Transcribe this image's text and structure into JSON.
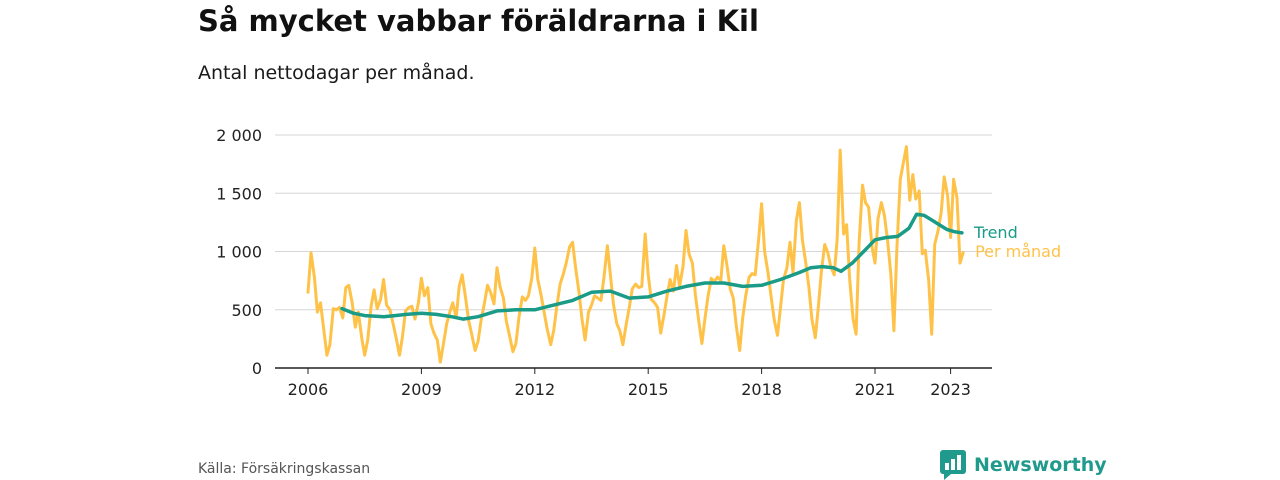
{
  "title": "Så mycket vabbar föräldrarna i Kil",
  "subtitle": "Antal nettodagar per månad.",
  "source": "Källa: Försäkringskassan",
  "brand": "Newsworthy",
  "colors": {
    "trend": "#1a9b88",
    "per_month": "#ffc249",
    "grid": "#d6d6d6",
    "axis": "#222222",
    "brand": "#1f9a8c"
  },
  "chart_data": {
    "type": "line",
    "x_ticks": [
      "2006",
      "2009",
      "2012",
      "2015",
      "2018",
      "2021",
      "2023"
    ],
    "y_ticks": [
      "0",
      "500",
      "1 000",
      "1 500",
      "2 000"
    ],
    "ylim": [
      0,
      2000
    ],
    "xlim": [
      2006,
      2024.2
    ],
    "grid": true,
    "legend": "right-end-labels",
    "series": [
      {
        "name": "Per månad",
        "color_key": "per_month",
        "points": [
          [
            2006.0,
            650
          ],
          [
            2006.08,
            990
          ],
          [
            2006.17,
            780
          ],
          [
            2006.25,
            480
          ],
          [
            2006.33,
            560
          ],
          [
            2006.42,
            320
          ],
          [
            2006.5,
            110
          ],
          [
            2006.58,
            200
          ],
          [
            2006.67,
            510
          ],
          [
            2006.75,
            500
          ],
          [
            2006.83,
            520
          ],
          [
            2006.92,
            430
          ],
          [
            2007.0,
            690
          ],
          [
            2007.08,
            710
          ],
          [
            2007.17,
            560
          ],
          [
            2007.25,
            350
          ],
          [
            2007.33,
            480
          ],
          [
            2007.42,
            260
          ],
          [
            2007.5,
            110
          ],
          [
            2007.58,
            240
          ],
          [
            2007.67,
            530
          ],
          [
            2007.75,
            670
          ],
          [
            2007.83,
            510
          ],
          [
            2007.92,
            590
          ],
          [
            2008.0,
            760
          ],
          [
            2008.08,
            540
          ],
          [
            2008.17,
            500
          ],
          [
            2008.25,
            380
          ],
          [
            2008.33,
            260
          ],
          [
            2008.42,
            110
          ],
          [
            2008.5,
            270
          ],
          [
            2008.58,
            490
          ],
          [
            2008.67,
            520
          ],
          [
            2008.75,
            530
          ],
          [
            2008.83,
            420
          ],
          [
            2008.92,
            560
          ],
          [
            2009.0,
            770
          ],
          [
            2009.08,
            620
          ],
          [
            2009.17,
            690
          ],
          [
            2009.25,
            380
          ],
          [
            2009.33,
            300
          ],
          [
            2009.42,
            240
          ],
          [
            2009.5,
            50
          ],
          [
            2009.58,
            200
          ],
          [
            2009.67,
            380
          ],
          [
            2009.75,
            480
          ],
          [
            2009.83,
            560
          ],
          [
            2009.92,
            430
          ],
          [
            2010.0,
            700
          ],
          [
            2010.08,
            800
          ],
          [
            2010.17,
            600
          ],
          [
            2010.25,
            410
          ],
          [
            2010.33,
            290
          ],
          [
            2010.42,
            150
          ],
          [
            2010.5,
            230
          ],
          [
            2010.58,
            410
          ],
          [
            2010.67,
            560
          ],
          [
            2010.75,
            710
          ],
          [
            2010.83,
            650
          ],
          [
            2010.92,
            550
          ],
          [
            2011.0,
            860
          ],
          [
            2011.08,
            700
          ],
          [
            2011.17,
            600
          ],
          [
            2011.25,
            400
          ],
          [
            2011.33,
            280
          ],
          [
            2011.42,
            140
          ],
          [
            2011.5,
            210
          ],
          [
            2011.58,
            430
          ],
          [
            2011.67,
            610
          ],
          [
            2011.75,
            580
          ],
          [
            2011.83,
            620
          ],
          [
            2011.92,
            770
          ],
          [
            2012.0,
            1030
          ],
          [
            2012.08,
            760
          ],
          [
            2012.17,
            620
          ],
          [
            2012.25,
            470
          ],
          [
            2012.33,
            330
          ],
          [
            2012.42,
            200
          ],
          [
            2012.5,
            320
          ],
          [
            2012.58,
            520
          ],
          [
            2012.67,
            720
          ],
          [
            2012.75,
            800
          ],
          [
            2012.83,
            900
          ],
          [
            2012.92,
            1040
          ],
          [
            2013.0,
            1080
          ],
          [
            2013.08,
            860
          ],
          [
            2013.17,
            650
          ],
          [
            2013.25,
            420
          ],
          [
            2013.33,
            240
          ],
          [
            2013.42,
            480
          ],
          [
            2013.5,
            540
          ],
          [
            2013.58,
            620
          ],
          [
            2013.67,
            600
          ],
          [
            2013.75,
            580
          ],
          [
            2013.83,
            780
          ],
          [
            2013.92,
            1050
          ],
          [
            2014.0,
            800
          ],
          [
            2014.08,
            550
          ],
          [
            2014.17,
            380
          ],
          [
            2014.25,
            320
          ],
          [
            2014.33,
            200
          ],
          [
            2014.42,
            380
          ],
          [
            2014.5,
            520
          ],
          [
            2014.58,
            680
          ],
          [
            2014.67,
            720
          ],
          [
            2014.75,
            690
          ],
          [
            2014.83,
            700
          ],
          [
            2014.92,
            1150
          ],
          [
            2015.0,
            800
          ],
          [
            2015.08,
            590
          ],
          [
            2015.17,
            560
          ],
          [
            2015.25,
            520
          ],
          [
            2015.33,
            300
          ],
          [
            2015.42,
            460
          ],
          [
            2015.5,
            620
          ],
          [
            2015.58,
            760
          ],
          [
            2015.67,
            660
          ],
          [
            2015.75,
            880
          ],
          [
            2015.83,
            700
          ],
          [
            2015.92,
            870
          ],
          [
            2016.0,
            1180
          ],
          [
            2016.08,
            980
          ],
          [
            2016.17,
            900
          ],
          [
            2016.25,
            620
          ],
          [
            2016.33,
            420
          ],
          [
            2016.42,
            210
          ],
          [
            2016.5,
            420
          ],
          [
            2016.58,
            610
          ],
          [
            2016.67,
            770
          ],
          [
            2016.75,
            740
          ],
          [
            2016.83,
            780
          ],
          [
            2016.92,
            750
          ],
          [
            2017.0,
            1050
          ],
          [
            2017.08,
            890
          ],
          [
            2017.17,
            680
          ],
          [
            2017.25,
            600
          ],
          [
            2017.33,
            360
          ],
          [
            2017.42,
            150
          ],
          [
            2017.5,
            430
          ],
          [
            2017.58,
            620
          ],
          [
            2017.67,
            780
          ],
          [
            2017.75,
            810
          ],
          [
            2017.83,
            800
          ],
          [
            2017.92,
            1100
          ],
          [
            2018.0,
            1410
          ],
          [
            2018.08,
            1000
          ],
          [
            2018.17,
            820
          ],
          [
            2018.25,
            620
          ],
          [
            2018.33,
            420
          ],
          [
            2018.42,
            280
          ],
          [
            2018.5,
            520
          ],
          [
            2018.58,
            760
          ],
          [
            2018.67,
            860
          ],
          [
            2018.75,
            1080
          ],
          [
            2018.83,
            820
          ],
          [
            2018.92,
            1270
          ],
          [
            2019.0,
            1420
          ],
          [
            2019.08,
            1100
          ],
          [
            2019.17,
            900
          ],
          [
            2019.25,
            700
          ],
          [
            2019.33,
            420
          ],
          [
            2019.42,
            260
          ],
          [
            2019.5,
            520
          ],
          [
            2019.58,
            820
          ],
          [
            2019.67,
            1060
          ],
          [
            2019.75,
            990
          ],
          [
            2019.83,
            870
          ],
          [
            2019.92,
            800
          ],
          [
            2020.0,
            1110
          ],
          [
            2020.08,
            1870
          ],
          [
            2020.17,
            1150
          ],
          [
            2020.25,
            1230
          ],
          [
            2020.33,
            760
          ],
          [
            2020.42,
            420
          ],
          [
            2020.5,
            290
          ],
          [
            2020.58,
            1070
          ],
          [
            2020.67,
            1570
          ],
          [
            2020.75,
            1420
          ],
          [
            2020.83,
            1380
          ],
          [
            2020.92,
            1040
          ],
          [
            2021.0,
            900
          ],
          [
            2021.08,
            1280
          ],
          [
            2021.17,
            1420
          ],
          [
            2021.25,
            1310
          ],
          [
            2021.33,
            1100
          ],
          [
            2021.42,
            800
          ],
          [
            2021.5,
            320
          ],
          [
            2021.58,
            1030
          ],
          [
            2021.67,
            1620
          ],
          [
            2021.75,
            1760
          ],
          [
            2021.83,
            1900
          ],
          [
            2021.92,
            1440
          ],
          [
            2022.0,
            1660
          ],
          [
            2022.08,
            1450
          ],
          [
            2022.17,
            1520
          ],
          [
            2022.25,
            980
          ],
          [
            2022.33,
            1010
          ],
          [
            2022.42,
            750
          ],
          [
            2022.5,
            290
          ],
          [
            2022.58,
            1060
          ],
          [
            2022.67,
            1180
          ],
          [
            2022.75,
            1330
          ],
          [
            2022.83,
            1640
          ],
          [
            2022.92,
            1480
          ],
          [
            2023.0,
            1120
          ],
          [
            2023.08,
            1620
          ],
          [
            2023.17,
            1460
          ],
          [
            2023.25,
            900
          ],
          [
            2023.33,
            990
          ]
        ]
      },
      {
        "name": "Trend",
        "color_key": "trend",
        "points": [
          [
            2006.9,
            510
          ],
          [
            2007.2,
            470
          ],
          [
            2007.5,
            450
          ],
          [
            2007.8,
            445
          ],
          [
            2008.0,
            440
          ],
          [
            2008.3,
            450
          ],
          [
            2008.6,
            460
          ],
          [
            2009.0,
            470
          ],
          [
            2009.4,
            460
          ],
          [
            2009.8,
            440
          ],
          [
            2010.1,
            420
          ],
          [
            2010.5,
            440
          ],
          [
            2011.0,
            490
          ],
          [
            2011.5,
            500
          ],
          [
            2012.0,
            500
          ],
          [
            2012.5,
            540
          ],
          [
            2013.0,
            580
          ],
          [
            2013.5,
            650
          ],
          [
            2014.0,
            660
          ],
          [
            2014.5,
            600
          ],
          [
            2015.0,
            610
          ],
          [
            2015.5,
            660
          ],
          [
            2016.0,
            700
          ],
          [
            2016.5,
            730
          ],
          [
            2017.0,
            730
          ],
          [
            2017.5,
            700
          ],
          [
            2018.0,
            710
          ],
          [
            2018.5,
            760
          ],
          [
            2019.0,
            820
          ],
          [
            2019.3,
            860
          ],
          [
            2019.6,
            870
          ],
          [
            2019.9,
            860
          ],
          [
            2020.1,
            830
          ],
          [
            2020.4,
            900
          ],
          [
            2020.7,
            1000
          ],
          [
            2021.0,
            1100
          ],
          [
            2021.3,
            1120
          ],
          [
            2021.6,
            1130
          ],
          [
            2021.9,
            1200
          ],
          [
            2022.1,
            1320
          ],
          [
            2022.3,
            1310
          ],
          [
            2022.5,
            1270
          ],
          [
            2022.7,
            1230
          ],
          [
            2022.9,
            1190
          ],
          [
            2023.1,
            1170
          ],
          [
            2023.3,
            1160
          ]
        ]
      }
    ]
  }
}
